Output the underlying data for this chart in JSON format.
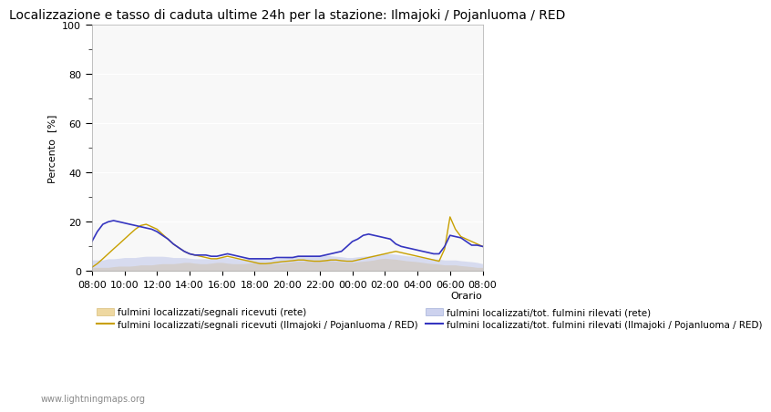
{
  "title": "Localizzazione e tasso di caduta ultime 24h per la stazione: Ilmajoki / Pojanluoma / RED",
  "xlabel": "Orario",
  "ylabel": "Percento  [%]",
  "xlim": [
    0,
    24
  ],
  "ylim": [
    0,
    100
  ],
  "yticks": [
    0,
    20,
    40,
    60,
    80,
    100
  ],
  "xtick_labels": [
    "08:00",
    "10:00",
    "12:00",
    "14:00",
    "16:00",
    "18:00",
    "20:00",
    "22:00",
    "00:00",
    "02:00",
    "04:00",
    "06:00",
    "08:00"
  ],
  "background_color": "#ffffff",
  "plot_bg_color": "#f8f8f8",
  "watermark": "www.lightningmaps.org",
  "legend_labels": [
    "fulmini localizzati/segnali ricevuti (rete)",
    "fulmini localizzati/segnali ricevuti (Ilmajoki / Pojanluoma / RED)",
    "fulmini localizzati/tot. fulmini rilevati (rete)",
    "fulmini localizzati/tot. fulmini rilevati (Ilmajoki / Pojanluoma / RED)"
  ],
  "x": [
    0,
    0.33,
    0.67,
    1.0,
    1.33,
    1.67,
    2.0,
    2.33,
    2.67,
    3.0,
    3.33,
    3.67,
    4.0,
    4.33,
    4.67,
    5.0,
    5.33,
    5.67,
    6.0,
    6.33,
    6.67,
    7.0,
    7.33,
    7.67,
    8.0,
    8.33,
    8.67,
    9.0,
    9.33,
    9.67,
    10.0,
    10.33,
    10.67,
    11.0,
    11.33,
    11.67,
    12.0,
    12.33,
    12.67,
    13.0,
    13.33,
    13.67,
    14.0,
    14.33,
    14.67,
    15.0,
    15.33,
    15.67,
    16.0,
    16.33,
    16.67,
    17.0,
    17.33,
    17.67,
    18.0,
    18.33,
    18.67,
    19.0,
    19.33,
    19.67,
    20.0,
    20.33,
    20.67,
    21.0,
    21.33,
    21.67,
    22.0,
    22.33,
    22.67,
    23.0,
    23.33,
    23.67,
    24.0
  ],
  "rete_signal": [
    1.5,
    1.5,
    1.5,
    1.5,
    1.8,
    2.0,
    2.0,
    2.0,
    2.2,
    2.5,
    2.5,
    2.5,
    2.8,
    3.0,
    3.0,
    3.0,
    3.2,
    3.5,
    3.5,
    3.2,
    3.0,
    3.0,
    3.2,
    3.5,
    3.5,
    3.2,
    3.0,
    3.0,
    3.0,
    3.2,
    3.5,
    3.5,
    3.2,
    3.0,
    3.0,
    3.2,
    3.5,
    3.8,
    4.0,
    4.0,
    4.2,
    4.5,
    4.5,
    4.5,
    4.2,
    4.0,
    3.8,
    3.5,
    3.5,
    3.8,
    4.0,
    4.2,
    4.5,
    5.0,
    5.2,
    5.0,
    4.8,
    4.5,
    4.2,
    4.0,
    3.8,
    3.5,
    3.2,
    3.0,
    2.8,
    2.5,
    2.5,
    2.5,
    2.2,
    2.0,
    1.8,
    1.5,
    1.5
  ],
  "rete_total": [
    4.5,
    4.5,
    4.5,
    5.0,
    5.0,
    5.2,
    5.5,
    5.5,
    5.5,
    5.8,
    6.0,
    6.0,
    6.0,
    6.0,
    5.8,
    5.5,
    5.5,
    5.5,
    5.2,
    5.0,
    5.0,
    5.0,
    5.0,
    5.2,
    5.5,
    5.5,
    5.2,
    5.0,
    5.0,
    5.2,
    5.5,
    5.5,
    5.2,
    5.0,
    5.0,
    5.2,
    5.5,
    5.8,
    6.0,
    6.0,
    6.0,
    6.2,
    6.5,
    6.5,
    6.2,
    6.0,
    5.8,
    5.5,
    5.5,
    5.8,
    6.0,
    6.2,
    6.5,
    7.0,
    7.2,
    7.0,
    6.8,
    6.5,
    6.2,
    6.0,
    5.8,
    5.5,
    5.2,
    5.0,
    4.8,
    4.5,
    4.5,
    4.5,
    4.2,
    4.0,
    3.8,
    3.5,
    3.0
  ],
  "station_signal": [
    1.5,
    3.0,
    5.0,
    7.0,
    9.0,
    11.0,
    13.0,
    15.0,
    17.0,
    18.5,
    19.0,
    18.0,
    17.0,
    15.0,
    13.0,
    11.0,
    9.5,
    8.0,
    7.0,
    6.5,
    6.0,
    5.5,
    5.0,
    5.0,
    5.5,
    6.0,
    5.5,
    5.0,
    4.5,
    4.0,
    3.5,
    3.0,
    3.0,
    3.2,
    3.5,
    3.8,
    4.0,
    4.2,
    4.5,
    4.5,
    4.2,
    4.0,
    4.0,
    4.2,
    4.5,
    4.5,
    4.2,
    4.0,
    4.0,
    4.5,
    5.0,
    5.5,
    6.0,
    6.5,
    7.0,
    7.5,
    8.0,
    7.5,
    7.0,
    6.5,
    6.0,
    5.5,
    5.0,
    4.5,
    4.0,
    9.0,
    22.0,
    17.0,
    14.0,
    13.0,
    12.0,
    11.0,
    10.0
  ],
  "station_total": [
    12.0,
    16.0,
    19.0,
    20.0,
    20.5,
    20.0,
    19.5,
    19.0,
    18.5,
    18.0,
    17.5,
    17.0,
    16.0,
    14.5,
    13.0,
    11.0,
    9.5,
    8.0,
    7.0,
    6.5,
    6.5,
    6.5,
    6.0,
    6.0,
    6.5,
    7.0,
    6.5,
    6.0,
    5.5,
    5.0,
    5.0,
    5.0,
    5.0,
    5.0,
    5.5,
    5.5,
    5.5,
    5.5,
    6.0,
    6.0,
    6.0,
    6.0,
    6.0,
    6.5,
    7.0,
    7.5,
    8.0,
    10.0,
    12.0,
    13.0,
    14.5,
    15.0,
    14.5,
    14.0,
    13.5,
    13.0,
    11.0,
    10.0,
    9.5,
    9.0,
    8.5,
    8.0,
    7.5,
    7.0,
    7.0,
    10.0,
    14.5,
    14.0,
    13.5,
    12.0,
    10.5,
    10.5,
    10.0
  ],
  "title_fontsize": 10,
  "axis_fontsize": 8,
  "tick_fontsize": 8,
  "legend_fontsize": 7.5
}
